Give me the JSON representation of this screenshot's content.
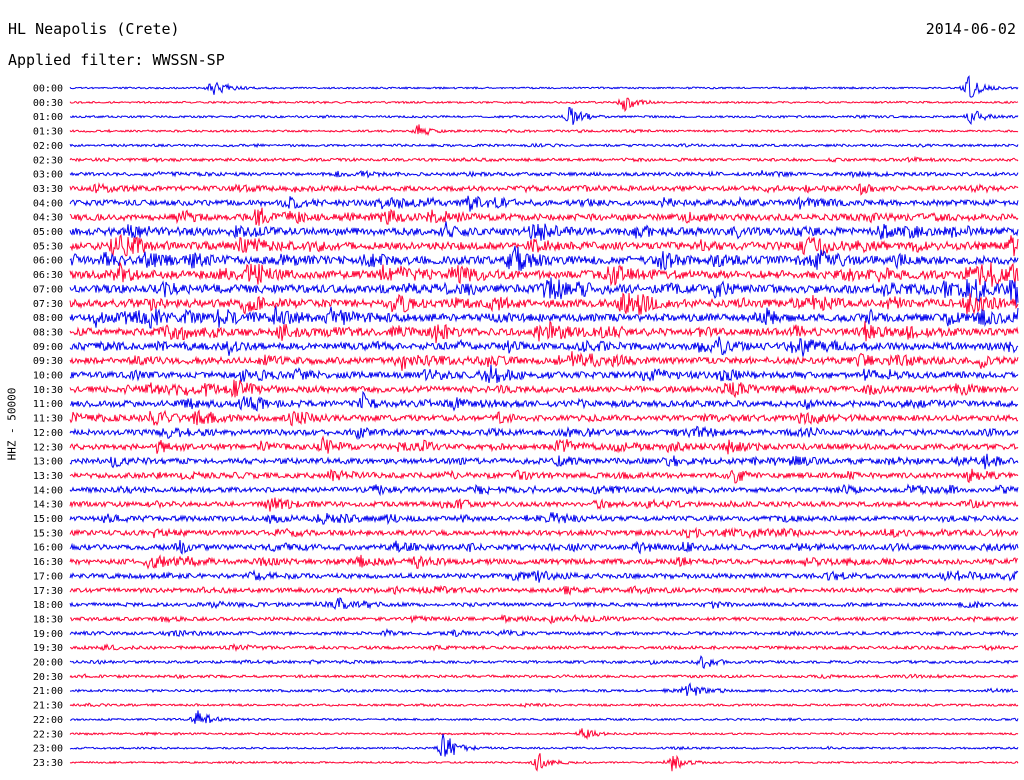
{
  "header": {
    "station": "HL Neapolis (Crete)",
    "date": "2014-06-02",
    "filter": "Applied filter: WWSSN-SP"
  },
  "channel_label": "HHZ - 50000",
  "colors": {
    "trace_a": "#0000ee",
    "trace_b": "#ff0033",
    "text": "#000000"
  },
  "chart_data": {
    "type": "line",
    "title": "HL Neapolis (Crete)",
    "subtitle": "Applied filter: WWSSN-SP",
    "date": "2014-06-02",
    "ylabel": "HHZ - 50000",
    "xlabel": "",
    "trace_duration_minutes": 30,
    "color_cycle": [
      "#0000ee",
      "#ff0033"
    ],
    "rows": [
      "00:00",
      "00:30",
      "01:00",
      "01:30",
      "02:00",
      "02:30",
      "03:00",
      "03:30",
      "04:00",
      "04:30",
      "05:00",
      "05:30",
      "06:00",
      "06:30",
      "07:00",
      "07:30",
      "08:00",
      "08:30",
      "09:00",
      "09:30",
      "10:00",
      "10:30",
      "11:00",
      "11:30",
      "12:00",
      "12:30",
      "13:00",
      "13:30",
      "14:00",
      "14:30",
      "15:00",
      "15:30",
      "16:00",
      "16:30",
      "17:00",
      "17:30",
      "18:00",
      "18:30",
      "19:00",
      "19:30",
      "20:00",
      "20:30",
      "21:00",
      "21:30",
      "22:00",
      "22:30",
      "23:00",
      "23:30"
    ],
    "activity_level": [
      0.05,
      0.08,
      0.1,
      0.12,
      0.15,
      0.22,
      0.3,
      0.48,
      0.6,
      0.72,
      0.85,
      0.9,
      0.92,
      0.95,
      0.95,
      0.92,
      0.88,
      0.85,
      0.8,
      0.75,
      0.7,
      0.68,
      0.66,
      0.62,
      0.6,
      0.58,
      0.6,
      0.55,
      0.52,
      0.5,
      0.5,
      0.52,
      0.55,
      0.55,
      0.5,
      0.42,
      0.35,
      0.3,
      0.28,
      0.25,
      0.2,
      0.18,
      0.15,
      0.12,
      0.1,
      0.08,
      0.08,
      0.06
    ],
    "events": [
      {
        "row": "00:00",
        "minute": 4.5,
        "amplitude": 1.6
      },
      {
        "row": "00:00",
        "minute": 28.4,
        "amplitude": 2.0
      },
      {
        "row": "00:30",
        "minute": 17.5,
        "amplitude": 1.4
      },
      {
        "row": "01:00",
        "minute": 15.8,
        "amplitude": 1.6
      },
      {
        "row": "01:00",
        "minute": 28.5,
        "amplitude": 1.3
      },
      {
        "row": "01:30",
        "minute": 11.0,
        "amplitude": 1.0
      },
      {
        "row": "12:30",
        "minute": 8.0,
        "amplitude": 1.2
      },
      {
        "row": "18:00",
        "minute": 8.5,
        "amplitude": 1.0
      },
      {
        "row": "20:00",
        "minute": 20.0,
        "amplitude": 1.1
      },
      {
        "row": "21:00",
        "minute": 19.5,
        "amplitude": 1.4
      },
      {
        "row": "22:00",
        "minute": 4.0,
        "amplitude": 1.6
      },
      {
        "row": "22:30",
        "minute": 16.2,
        "amplitude": 1.0
      },
      {
        "row": "23:00",
        "minute": 11.8,
        "amplitude": 2.6
      },
      {
        "row": "23:30",
        "minute": 14.8,
        "amplitude": 1.6
      },
      {
        "row": "23:30",
        "minute": 19.0,
        "amplitude": 1.5
      }
    ]
  }
}
